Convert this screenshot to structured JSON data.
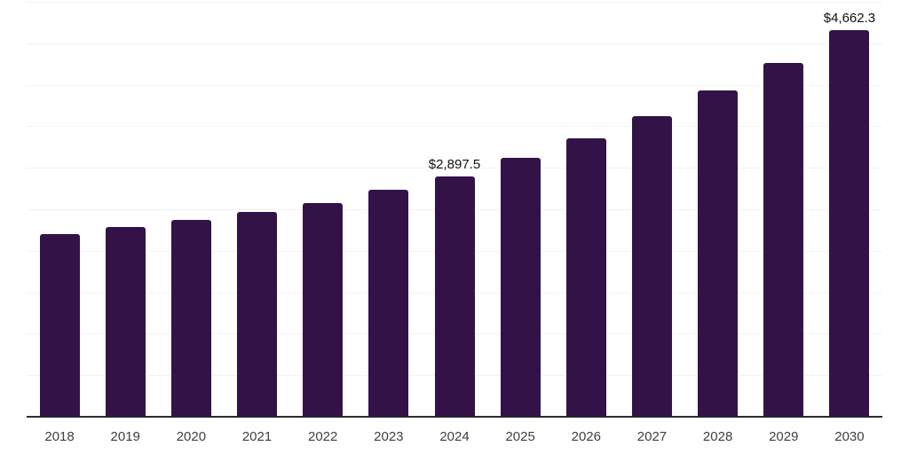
{
  "chart_data": {
    "type": "bar",
    "title": "",
    "xlabel": "",
    "ylabel": "",
    "categories": [
      "2018",
      "2019",
      "2020",
      "2021",
      "2022",
      "2023",
      "2024",
      "2025",
      "2026",
      "2027",
      "2028",
      "2029",
      "2030"
    ],
    "values": [
      2200,
      2290,
      2375,
      2470,
      2580,
      2730,
      2897.5,
      3115,
      3350,
      3620,
      3930,
      4265,
      4662.3
    ],
    "point_labels": [
      {
        "category": "2024",
        "text": "$2,897.5"
      },
      {
        "category": "2030",
        "text": "$4,662.3"
      }
    ],
    "ylim": [
      0,
      5000
    ],
    "ytick_step": 500,
    "y_axis_labels_shown": false,
    "grid": "horizontal",
    "legend": "none",
    "colors": {
      "bar": "#331347",
      "gridline": "#f2f2f2",
      "axis_line": "#2e2e2e",
      "point_label": "#111111",
      "tick_label": "#3f3f3f",
      "background": "#ffffff"
    }
  }
}
